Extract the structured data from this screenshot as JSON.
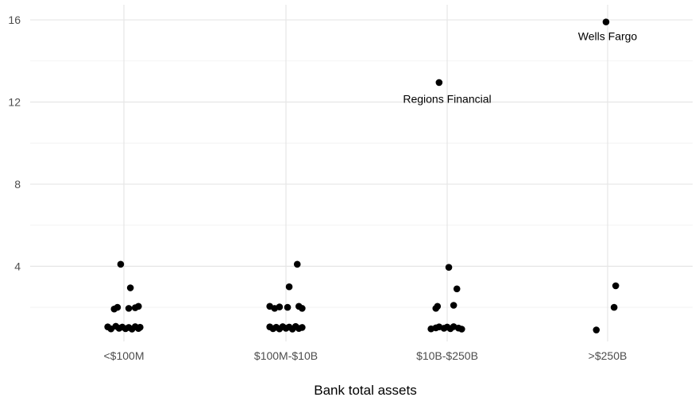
{
  "chart_data": {
    "type": "scatter",
    "title": "",
    "xlabel": "Bank total assets",
    "ylabel": "",
    "categories": [
      "<$100M",
      "$100M-$10B",
      "$10B-$250B",
      ">$250B"
    ],
    "y_ticks": [
      4,
      8,
      12,
      16
    ],
    "ylim": [
      0,
      16.5
    ],
    "grid": true,
    "series": [
      {
        "points": [
          {
            "category": "<$100M",
            "jitter": -0.02,
            "y": 4.1
          },
          {
            "category": "<$100M",
            "jitter": 0.04,
            "y": 2.95
          },
          {
            "category": "<$100M",
            "jitter": -0.04,
            "y": 2.0
          },
          {
            "category": "<$100M",
            "jitter": -0.06,
            "y": 1.92
          },
          {
            "category": "<$100M",
            "jitter": 0.03,
            "y": 1.95
          },
          {
            "category": "<$100M",
            "jitter": 0.09,
            "y": 2.05
          },
          {
            "category": "<$100M",
            "jitter": 0.07,
            "y": 1.98
          },
          {
            "category": "<$100M",
            "jitter": -0.1,
            "y": 1.05
          },
          {
            "category": "<$100M",
            "jitter": -0.08,
            "y": 0.95
          },
          {
            "category": "<$100M",
            "jitter": -0.05,
            "y": 1.08
          },
          {
            "category": "<$100M",
            "jitter": -0.03,
            "y": 0.98
          },
          {
            "category": "<$100M",
            "jitter": -0.01,
            "y": 1.04
          },
          {
            "category": "<$100M",
            "jitter": 0.01,
            "y": 0.96
          },
          {
            "category": "<$100M",
            "jitter": 0.03,
            "y": 1.02
          },
          {
            "category": "<$100M",
            "jitter": 0.05,
            "y": 0.94
          },
          {
            "category": "<$100M",
            "jitter": 0.07,
            "y": 1.06
          },
          {
            "category": "<$100M",
            "jitter": 0.09,
            "y": 0.97
          },
          {
            "category": "<$100M",
            "jitter": 0.1,
            "y": 1.03
          },
          {
            "category": "$100M-$10B",
            "jitter": 0.07,
            "y": 4.1
          },
          {
            "category": "$100M-$10B",
            "jitter": 0.02,
            "y": 3.0
          },
          {
            "category": "$100M-$10B",
            "jitter": -0.1,
            "y": 2.05
          },
          {
            "category": "$100M-$10B",
            "jitter": -0.07,
            "y": 1.95
          },
          {
            "category": "$100M-$10B",
            "jitter": -0.04,
            "y": 2.02
          },
          {
            "category": "$100M-$10B",
            "jitter": 0.01,
            "y": 2.0
          },
          {
            "category": "$100M-$10B",
            "jitter": 0.08,
            "y": 2.05
          },
          {
            "category": "$100M-$10B",
            "jitter": 0.1,
            "y": 1.95
          },
          {
            "category": "$100M-$10B",
            "jitter": -0.1,
            "y": 1.05
          },
          {
            "category": "$100M-$10B",
            "jitter": -0.08,
            "y": 0.96
          },
          {
            "category": "$100M-$10B",
            "jitter": -0.06,
            "y": 1.03
          },
          {
            "category": "$100M-$10B",
            "jitter": -0.04,
            "y": 0.95
          },
          {
            "category": "$100M-$10B",
            "jitter": -0.02,
            "y": 1.06
          },
          {
            "category": "$100M-$10B",
            "jitter": 0.0,
            "y": 0.98
          },
          {
            "category": "$100M-$10B",
            "jitter": 0.02,
            "y": 1.04
          },
          {
            "category": "$100M-$10B",
            "jitter": 0.04,
            "y": 0.94
          },
          {
            "category": "$100M-$10B",
            "jitter": 0.06,
            "y": 1.07
          },
          {
            "category": "$100M-$10B",
            "jitter": 0.08,
            "y": 0.97
          },
          {
            "category": "$100M-$10B",
            "jitter": 0.1,
            "y": 1.02
          },
          {
            "category": "$10B-$250B",
            "jitter": -0.05,
            "y": 12.95
          },
          {
            "category": "$10B-$250B",
            "jitter": 0.01,
            "y": 3.95
          },
          {
            "category": "$10B-$250B",
            "jitter": 0.06,
            "y": 2.9
          },
          {
            "category": "$10B-$250B",
            "jitter": -0.06,
            "y": 2.05
          },
          {
            "category": "$10B-$250B",
            "jitter": -0.07,
            "y": 1.95
          },
          {
            "category": "$10B-$250B",
            "jitter": 0.04,
            "y": 2.1
          },
          {
            "category": "$10B-$250B",
            "jitter": -0.1,
            "y": 0.95
          },
          {
            "category": "$10B-$250B",
            "jitter": -0.07,
            "y": 1.0
          },
          {
            "category": "$10B-$250B",
            "jitter": -0.05,
            "y": 1.05
          },
          {
            "category": "$10B-$250B",
            "jitter": -0.02,
            "y": 0.98
          },
          {
            "category": "$10B-$250B",
            "jitter": 0.0,
            "y": 1.04
          },
          {
            "category": "$10B-$250B",
            "jitter": 0.02,
            "y": 0.96
          },
          {
            "category": "$10B-$250B",
            "jitter": 0.04,
            "y": 1.06
          },
          {
            "category": "$10B-$250B",
            "jitter": 0.07,
            "y": 0.99
          },
          {
            "category": "$10B-$250B",
            "jitter": 0.09,
            "y": 0.94
          },
          {
            "category": ">$250B",
            "jitter": -0.01,
            "y": 15.9
          },
          {
            "category": ">$250B",
            "jitter": 0.05,
            "y": 3.05
          },
          {
            "category": ">$250B",
            "jitter": 0.04,
            "y": 2.0
          },
          {
            "category": ">$250B",
            "jitter": -0.07,
            "y": 0.9
          }
        ]
      }
    ],
    "annotations": [
      {
        "text": "Wells Fargo",
        "category": ">$250B",
        "jitter": 0.0,
        "y": 15.2
      },
      {
        "text": "Regions Financial",
        "category": "$10B-$250B",
        "jitter": 0.0,
        "y": 12.15
      }
    ]
  }
}
